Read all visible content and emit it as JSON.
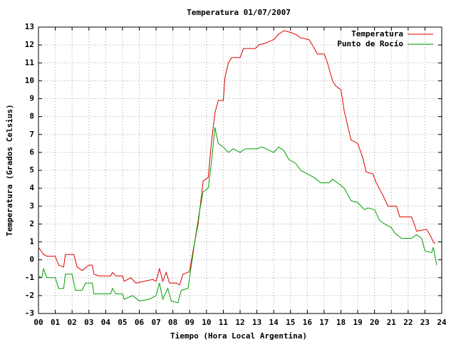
{
  "chart_data": {
    "type": "line",
    "title": "Temperatura 01/07/2007",
    "x_label": "Tiempo (Hora Local Argentina)",
    "y_label": "Temperatura (Grados Celsius)",
    "xlim": [
      0,
      24
    ],
    "ylim": [
      -3,
      13
    ],
    "xticks": [
      {
        "value": 0,
        "label": "00"
      },
      {
        "value": 1,
        "label": "01"
      },
      {
        "value": 2,
        "label": "02"
      },
      {
        "value": 3,
        "label": "03"
      },
      {
        "value": 4,
        "label": "04"
      },
      {
        "value": 5,
        "label": "05"
      },
      {
        "value": 6,
        "label": "06"
      },
      {
        "value": 7,
        "label": "07"
      },
      {
        "value": 8,
        "label": "08"
      },
      {
        "value": 9,
        "label": "09"
      },
      10,
      11,
      12,
      13,
      14,
      15,
      16,
      17,
      18,
      19,
      20,
      21,
      22,
      23,
      24
    ],
    "yticks": [
      -3,
      -2,
      -1,
      0,
      1,
      2,
      3,
      4,
      5,
      6,
      7,
      8,
      9,
      10,
      11,
      12,
      13
    ],
    "grid": true,
    "legend": "top-right",
    "series": [
      {
        "name": "Temperatura",
        "color": "#e00000",
        "x": [
          0,
          0.3,
          0.5,
          1.0,
          1.2,
          1.5,
          1.6,
          2.1,
          2.3,
          2.6,
          3.0,
          3.2,
          3.3,
          3.6,
          4.3,
          4.4,
          4.6,
          5.0,
          5.1,
          5.5,
          5.8,
          6.3,
          6.8,
          7.0,
          7.2,
          7.4,
          7.6,
          7.8,
          8.2,
          8.4,
          8.6,
          8.9,
          9.0,
          9.2,
          9.5,
          9.8,
          10.1,
          10.3,
          10.5,
          10.7,
          11.0,
          11.1,
          11.3,
          11.5,
          12.0,
          12.2,
          12.9,
          13.1,
          13.5,
          14.0,
          14.3,
          14.6,
          15.0,
          15.3,
          15.6,
          16.1,
          16.3,
          16.6,
          17.0,
          17.2,
          17.5,
          17.7,
          18.0,
          18.2,
          18.6,
          19.0,
          19.3,
          19.5,
          19.9,
          20.1,
          20.5,
          20.8,
          21.3,
          21.5,
          22.2,
          22.4,
          22.5,
          23.1,
          23.3,
          23.5,
          23.6
        ],
        "values": [
          0.7,
          0.3,
          0.2,
          0.2,
          -0.3,
          -0.4,
          0.3,
          0.3,
          -0.4,
          -0.6,
          -0.3,
          -0.3,
          -0.8,
          -0.9,
          -0.9,
          -0.7,
          -0.9,
          -0.9,
          -1.2,
          -1.0,
          -1.3,
          -1.2,
          -1.1,
          -1.2,
          -0.5,
          -1.2,
          -0.7,
          -1.3,
          -1.3,
          -1.4,
          -0.8,
          -0.7,
          -0.6,
          0.5,
          2.0,
          4.4,
          4.6,
          6.6,
          8.2,
          8.9,
          8.9,
          10.2,
          11.0,
          11.3,
          11.3,
          11.8,
          11.8,
          12.0,
          12.1,
          12.3,
          12.6,
          12.8,
          12.7,
          12.6,
          12.4,
          12.3,
          12.0,
          11.5,
          11.5,
          11.0,
          10.0,
          9.7,
          9.5,
          8.3,
          6.7,
          6.5,
          5.7,
          4.9,
          4.8,
          4.3,
          3.6,
          3.0,
          3.0,
          2.4,
          2.4,
          1.9,
          1.6,
          1.7,
          1.4,
          1.0,
          0.9
        ]
      },
      {
        "name": "Punto de Rocío",
        "color": "#00a000",
        "x": [
          0,
          0.2,
          0.3,
          0.5,
          1.0,
          1.2,
          1.5,
          1.6,
          2.0,
          2.2,
          2.6,
          2.8,
          3.2,
          3.3,
          4.3,
          4.4,
          4.6,
          5.0,
          5.1,
          5.6,
          6.0,
          6.6,
          7.0,
          7.2,
          7.4,
          7.7,
          7.9,
          8.3,
          8.5,
          8.9,
          9.1,
          9.3,
          9.6,
          9.8,
          10.1,
          10.3,
          10.5,
          10.7,
          11.0,
          11.3,
          11.6,
          12.0,
          12.3,
          13.0,
          13.3,
          14.0,
          14.3,
          14.6,
          14.9,
          15.3,
          15.6,
          16.0,
          16.4,
          16.8,
          17.3,
          17.5,
          17.8,
          18.2,
          18.6,
          19.0,
          19.4,
          19.6,
          20.0,
          20.3,
          20.6,
          21.0,
          21.2,
          21.6,
          22.2,
          22.5,
          22.8,
          23.0,
          23.4,
          23.5,
          23.7
        ],
        "values": [
          -0.9,
          -1.0,
          -0.5,
          -1.0,
          -1.0,
          -1.6,
          -1.6,
          -0.8,
          -0.8,
          -1.7,
          -1.7,
          -1.3,
          -1.3,
          -1.9,
          -1.9,
          -1.6,
          -1.9,
          -1.9,
          -2.2,
          -2.0,
          -2.3,
          -2.2,
          -2.0,
          -1.3,
          -2.2,
          -1.6,
          -2.3,
          -2.4,
          -1.7,
          -1.6,
          -0.3,
          1.0,
          2.8,
          3.8,
          4.0,
          5.5,
          7.4,
          6.5,
          6.3,
          6.0,
          6.2,
          6.0,
          6.2,
          6.2,
          6.3,
          6.0,
          6.3,
          6.1,
          5.6,
          5.4,
          5.0,
          4.8,
          4.6,
          4.3,
          4.3,
          4.5,
          4.3,
          4.0,
          3.3,
          3.2,
          2.8,
          2.9,
          2.8,
          2.2,
          2.0,
          1.8,
          1.5,
          1.2,
          1.2,
          1.4,
          1.2,
          0.5,
          0.4,
          0.7,
          -0.3
        ]
      }
    ]
  }
}
